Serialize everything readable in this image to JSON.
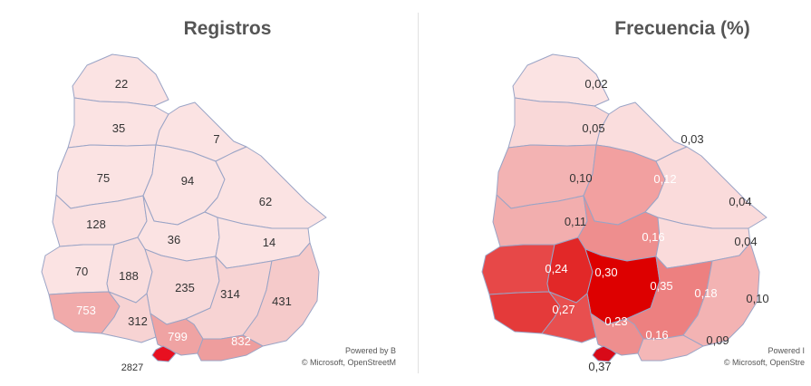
{
  "panels": [
    {
      "title": "Registros",
      "credit_line1": "Powered by B",
      "credit_line2": "© Microsoft, OpenStreetM",
      "regions": [
        {
          "id": "artigas",
          "label": "22",
          "fill": "#fbe3e3"
        },
        {
          "id": "salto",
          "label": "35",
          "fill": "#fbe3e3"
        },
        {
          "id": "rivera",
          "label": "7",
          "fill": "#fbe3e3"
        },
        {
          "id": "paysandu",
          "label": "75",
          "fill": "#fbe3e3"
        },
        {
          "id": "tacuarembo",
          "label": "94",
          "fill": "#fbe3e3"
        },
        {
          "id": "cerro-largo",
          "label": "62",
          "fill": "#fbe3e3"
        },
        {
          "id": "rio-negro",
          "label": "128",
          "fill": "#fae0e0"
        },
        {
          "id": "durazno",
          "label": "36",
          "fill": "#fbe3e3"
        },
        {
          "id": "treinta-y-tres",
          "label": "14",
          "fill": "#fbe3e3"
        },
        {
          "id": "soriano",
          "label": "70",
          "fill": "#fbe3e3"
        },
        {
          "id": "flores",
          "label": "188",
          "fill": "#f9dddd"
        },
        {
          "id": "florida",
          "label": "235",
          "fill": "#f8d9d9"
        },
        {
          "id": "lavalleja",
          "label": "314",
          "fill": "#f7d3d3"
        },
        {
          "id": "rocha",
          "label": "431",
          "fill": "#f5caca"
        },
        {
          "id": "colonia",
          "label": "753",
          "fill": "#f1aaaa"
        },
        {
          "id": "san-jose",
          "label": "312",
          "fill": "#f7d3d3"
        },
        {
          "id": "canelones",
          "label": "799",
          "fill": "#efa3a3"
        },
        {
          "id": "maldonado",
          "label": "832",
          "fill": "#ee9d9d"
        },
        {
          "id": "montevideo",
          "label": "2827",
          "fill": "#e81020"
        }
      ]
    },
    {
      "title": "Frecuencia (%)",
      "credit_line1": "Powered I",
      "credit_line2": "© Microsoft, OpenStre",
      "regions": [
        {
          "id": "artigas",
          "label": "0,02",
          "fill": "#fbe3e3"
        },
        {
          "id": "salto",
          "label": "0,05",
          "fill": "#f9d8d8"
        },
        {
          "id": "rivera",
          "label": "0,03",
          "fill": "#fadddd"
        },
        {
          "id": "paysandu",
          "label": "0,10",
          "fill": "#f3b3b3"
        },
        {
          "id": "tacuarembo",
          "label": "0,12",
          "fill": "#f2a0a0"
        },
        {
          "id": "cerro-largo",
          "label": "0,04",
          "fill": "#fadbdb"
        },
        {
          "id": "rio-negro",
          "label": "0,11",
          "fill": "#f2aeae"
        },
        {
          "id": "durazno",
          "label": "0,16",
          "fill": "#ee8e8e"
        },
        {
          "id": "treinta-y-tres",
          "label": "0,04",
          "fill": "#fadbdb"
        },
        {
          "id": "soriano",
          "label": "0,24",
          "fill": "#e74848"
        },
        {
          "id": "flores",
          "label": "0,30",
          "fill": "#e22828"
        },
        {
          "id": "florida",
          "label": "0,35",
          "fill": "#dd0000"
        },
        {
          "id": "lavalleja",
          "label": "0,18",
          "fill": "#ed8080"
        },
        {
          "id": "rocha",
          "label": "0,10",
          "fill": "#f3b3b3"
        },
        {
          "id": "colonia",
          "label": "0,27",
          "fill": "#e43a3a"
        },
        {
          "id": "san-jose",
          "label": "0,23",
          "fill": "#e84f4f"
        },
        {
          "id": "canelones",
          "label": "0,16",
          "fill": "#ee8e8e"
        },
        {
          "id": "maldonado",
          "label": "0,09",
          "fill": "#f4b7b7"
        },
        {
          "id": "montevideo",
          "label": "0,37",
          "fill": "#d80a18"
        }
      ]
    }
  ]
}
